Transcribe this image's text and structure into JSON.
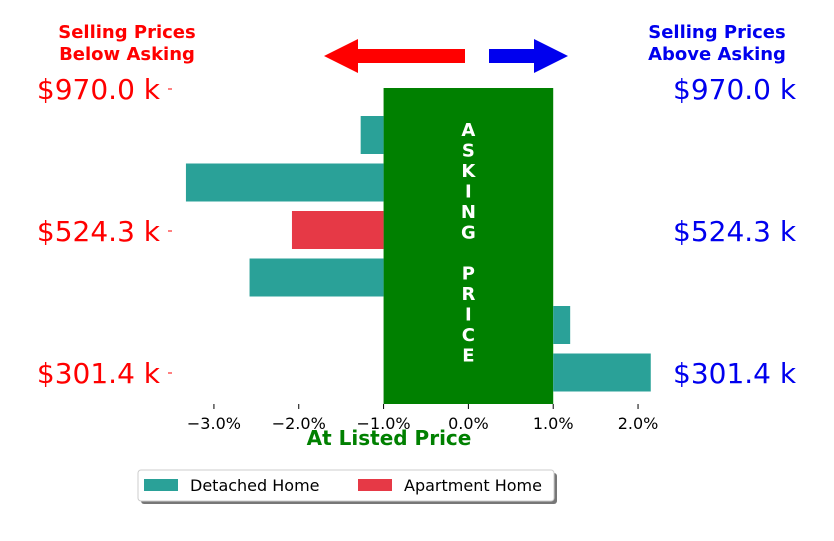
{
  "header": {
    "left_line1": "Selling Prices",
    "left_line2": "Below Asking",
    "right_line1": "Selling Prices",
    "right_line2": "Above Asking"
  },
  "y_labels": {
    "left": [
      "$970.0 k",
      "$524.3 k",
      "$301.4 k"
    ],
    "right": [
      "$970.0 k",
      "$524.3 k",
      "$301.4 k"
    ]
  },
  "asking_letters": [
    "A",
    "S",
    "K",
    "I",
    "N",
    "G",
    "",
    "P",
    "R",
    "I",
    "C",
    "E"
  ],
  "colors": {
    "detached": "#2aa198",
    "apartment": "#e63946",
    "asking_band": "#008000",
    "below": "#ff0000",
    "above": "#0000ee",
    "at_listed": "#008000"
  },
  "legend": {
    "detached": "Detached Home",
    "apartment": "Apartment Home"
  },
  "chart_data": {
    "type": "bar",
    "orientation": "horizontal",
    "xlabel": "At Listed Price",
    "xlim": [
      -3.4,
      2.2
    ],
    "x_ticks": [
      -3.0,
      -2.0,
      -1.0,
      0.0,
      1.0,
      2.0
    ],
    "x_tick_labels": [
      "−3.0%",
      "−2.0%",
      "−1.0%",
      "0.0%",
      "1.0%",
      "2.0%"
    ],
    "asking_band": [
      -1.0,
      1.0
    ],
    "bars": [
      {
        "series": "Detached Home",
        "value": -1.27
      },
      {
        "series": "Detached Home",
        "value": -3.33
      },
      {
        "series": "Apartment Home",
        "value": -2.08
      },
      {
        "series": "Detached Home",
        "value": -2.58
      },
      {
        "series": "Detached Home",
        "value": 1.2
      },
      {
        "series": "Detached Home",
        "value": 2.15
      }
    ],
    "legend_position": "bottom-center"
  }
}
